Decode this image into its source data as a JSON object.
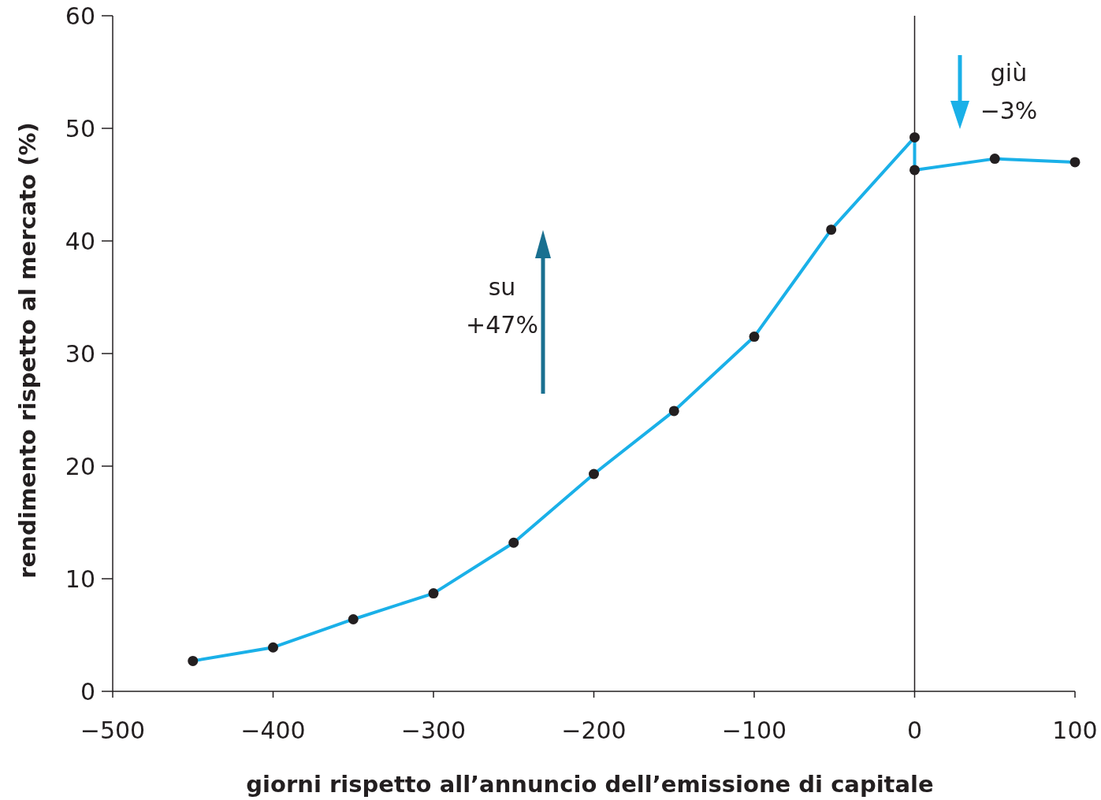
{
  "chart_data": {
    "type": "line",
    "xlabel": "giorni rispetto all’annuncio dell’emissione di capitale",
    "ylabel": "rendimento rispetto al mercato (%)",
    "x": [
      -450,
      -400,
      -350,
      -300,
      -250,
      -200,
      -150,
      -100,
      -52,
      0,
      0,
      50,
      100
    ],
    "series": [
      {
        "color": "#1ab0e8",
        "values": [
          2.7,
          3.9,
          6.4,
          8.7,
          13.2,
          19.3,
          24.9,
          31.5,
          41.0,
          49.2,
          46.3,
          47.3,
          47.0
        ]
      }
    ],
    "marker": "circle",
    "xlim": [
      -500,
      100
    ],
    "xticks": [
      {
        "value": -500,
        "label": "−500"
      },
      {
        "value": -400,
        "label": "−400"
      },
      {
        "value": -300,
        "label": "−300"
      },
      {
        "value": -200,
        "label": "−200"
      },
      {
        "value": -100,
        "label": "−100"
      },
      0,
      100
    ],
    "ylim": [
      0,
      60
    ],
    "yticks": [
      0,
      10,
      20,
      30,
      40,
      50,
      60
    ],
    "ref_lines": [
      {
        "axis": "x",
        "value": 0,
        "color": "#231f20"
      }
    ],
    "annotations": [
      "su\n+47%",
      "giù\n−3%"
    ]
  }
}
